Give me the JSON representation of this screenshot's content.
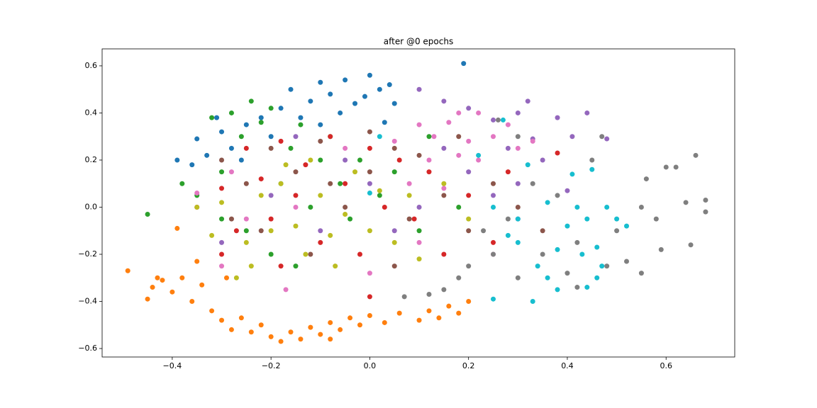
{
  "chart_data": {
    "type": "scatter",
    "title": "after @0 epochs",
    "xlim": [
      -0.542,
      0.739
    ],
    "ylim": [
      -0.636,
      0.672
    ],
    "xticks": [
      {
        "value": -0.4,
        "label": "−0.4"
      },
      {
        "value": -0.2,
        "label": "−0.2"
      },
      {
        "value": 0,
        "label": "0.0"
      },
      0.2,
      0.4,
      0.6
    ],
    "yticks": [
      {
        "value": -0.6,
        "label": "−0.6"
      },
      {
        "value": -0.4,
        "label": "−0.4"
      },
      {
        "value": -0.2,
        "label": "−0.2"
      },
      {
        "value": 0,
        "label": "0.0"
      },
      0.2,
      0.4,
      0.6
    ],
    "series": [
      {
        "color": "#1f77b4",
        "x": [
          -0.39,
          -0.35,
          -0.33,
          -0.3,
          -0.28,
          -0.25,
          -0.22,
          -0.18,
          -0.16,
          -0.12,
          -0.1,
          -0.08,
          -0.05,
          -0.03,
          0.0,
          0.02,
          0.04,
          0.05,
          -0.06,
          -0.14,
          -0.2,
          0.19,
          -0.26,
          -0.1,
          0.03,
          -0.36,
          -0.31,
          -0.01
        ],
        "values": [
          0.2,
          0.29,
          0.22,
          0.32,
          0.25,
          0.35,
          0.38,
          0.42,
          0.5,
          0.45,
          0.53,
          0.48,
          0.54,
          0.44,
          0.56,
          0.5,
          0.52,
          0.44,
          0.4,
          0.38,
          0.3,
          0.61,
          0.2,
          0.35,
          0.36,
          0.18,
          0.38,
          0.47
        ]
      },
      {
        "color": "#ff7f0e",
        "x": [
          -0.49,
          -0.45,
          -0.44,
          -0.42,
          -0.4,
          -0.38,
          -0.36,
          -0.34,
          -0.32,
          -0.3,
          -0.28,
          -0.26,
          -0.24,
          -0.22,
          -0.2,
          -0.18,
          -0.16,
          -0.14,
          -0.12,
          -0.1,
          -0.08,
          -0.06,
          -0.04,
          -0.02,
          0.0,
          0.03,
          0.06,
          0.1,
          0.14,
          0.16,
          0.18,
          0.2,
          -0.39,
          -0.35,
          -0.29,
          -0.43,
          -0.08,
          0.12
        ],
        "values": [
          -0.27,
          -0.39,
          -0.34,
          -0.31,
          -0.36,
          -0.3,
          -0.4,
          -0.33,
          -0.44,
          -0.48,
          -0.52,
          -0.47,
          -0.53,
          -0.5,
          -0.55,
          -0.57,
          -0.53,
          -0.56,
          -0.51,
          -0.54,
          -0.49,
          -0.52,
          -0.47,
          -0.5,
          -0.46,
          -0.49,
          -0.45,
          -0.48,
          -0.47,
          -0.42,
          -0.45,
          -0.4,
          -0.09,
          -0.23,
          -0.3,
          -0.3,
          -0.56,
          -0.44
        ]
      },
      {
        "color": "#2ca02c",
        "x": [
          -0.45,
          -0.38,
          -0.35,
          -0.32,
          -0.3,
          -0.28,
          -0.26,
          -0.24,
          -0.22,
          -0.2,
          -0.18,
          -0.16,
          -0.14,
          -0.12,
          -0.1,
          -0.08,
          -0.06,
          -0.04,
          -0.02,
          0.02,
          0.05,
          0.1,
          -0.15,
          -0.25,
          -0.3,
          -0.2,
          0.12,
          0.18
        ],
        "values": [
          -0.03,
          0.1,
          0.05,
          0.38,
          0.15,
          0.4,
          0.3,
          0.45,
          0.36,
          0.42,
          0.1,
          0.25,
          0.35,
          0.0,
          0.2,
          0.3,
          0.1,
          -0.05,
          0.2,
          0.05,
          0.15,
          -0.1,
          -0.25,
          -0.1,
          -0.05,
          -0.2,
          0.3,
          0.0
        ]
      },
      {
        "color": "#d62728",
        "x": [
          -0.35,
          -0.3,
          -0.27,
          -0.25,
          -0.22,
          -0.2,
          -0.18,
          -0.15,
          -0.13,
          -0.1,
          -0.08,
          -0.05,
          -0.02,
          0.0,
          0.03,
          0.06,
          0.09,
          0.12,
          0.15,
          0.2,
          0.25,
          0.28,
          -0.18,
          0.0,
          0.38,
          -0.3
        ],
        "values": [
          0.0,
          0.08,
          -0.1,
          0.25,
          0.12,
          -0.05,
          0.28,
          0.05,
          0.18,
          -0.15,
          0.3,
          0.1,
          -0.2,
          0.25,
          0.0,
          0.2,
          -0.05,
          0.15,
          -0.2,
          0.05,
          -0.15,
          0.15,
          -0.25,
          -0.38,
          0.23,
          -0.2
        ]
      },
      {
        "color": "#9467bd",
        "x": [
          0.1,
          0.15,
          0.2,
          0.25,
          0.3,
          0.32,
          0.33,
          0.38,
          0.44,
          0.48,
          0.41,
          0.35,
          0.3,
          0.25,
          0.2,
          0.15,
          0.1,
          0.05,
          0.0,
          -0.05,
          -0.1,
          -0.2,
          -0.3,
          0.3,
          0.4,
          0.28,
          -0.15
        ],
        "values": [
          0.5,
          0.45,
          0.42,
          0.37,
          0.4,
          0.45,
          0.29,
          0.38,
          0.4,
          0.29,
          0.3,
          0.2,
          0.1,
          0.05,
          0.15,
          0.25,
          0.0,
          -0.1,
          0.1,
          0.2,
          -0.1,
          0.05,
          -0.15,
          -0.05,
          0.07,
          0.25,
          0.3
        ]
      },
      {
        "color": "#8c564b",
        "x": [
          -0.3,
          -0.25,
          -0.2,
          -0.15,
          -0.1,
          -0.05,
          0.0,
          0.05,
          0.08,
          0.1,
          0.15,
          0.2,
          0.25,
          0.3,
          -0.12,
          -0.22,
          0.05,
          0.18,
          -0.08,
          0.35,
          0.0,
          -0.28
        ],
        "values": [
          0.2,
          0.1,
          0.25,
          0.15,
          0.28,
          0.0,
          0.15,
          0.25,
          -0.05,
          0.22,
          0.05,
          -0.1,
          0.1,
          0.0,
          -0.2,
          -0.1,
          -0.25,
          0.3,
          0.1,
          -0.1,
          0.32,
          -0.05
        ]
      },
      {
        "color": "#e377c2",
        "x": [
          0.1,
          0.13,
          0.16,
          0.18,
          0.2,
          0.22,
          0.25,
          0.28,
          0.3,
          0.18,
          0.12,
          0.08,
          0.15,
          0.05,
          -0.05,
          -0.15,
          -0.25,
          -0.35,
          -0.3,
          -0.17,
          0.0,
          0.1,
          0.25,
          0.22,
          -0.28,
          0.33
        ],
        "values": [
          0.35,
          0.3,
          0.36,
          0.22,
          0.28,
          0.2,
          0.3,
          0.35,
          0.25,
          0.4,
          0.2,
          0.1,
          0.08,
          0.28,
          0.25,
          0.0,
          -0.05,
          0.06,
          -0.25,
          -0.35,
          -0.28,
          -0.15,
          -0.2,
          0.4,
          0.15,
          0.28
        ]
      },
      {
        "color": "#7f7f7f",
        "x": [
          0.15,
          0.18,
          0.2,
          0.23,
          0.25,
          0.28,
          0.3,
          0.33,
          0.35,
          0.38,
          0.4,
          0.42,
          0.45,
          0.47,
          0.5,
          0.52,
          0.55,
          0.56,
          0.58,
          0.6,
          0.62,
          0.64,
          0.65,
          0.66,
          0.68,
          0.68,
          0.59,
          0.55,
          0.3,
          0.12,
          0.07,
          0.42,
          0.48,
          0.26
        ],
        "values": [
          -0.35,
          -0.3,
          -0.25,
          -0.1,
          -0.2,
          -0.05,
          -0.3,
          0.1,
          -0.2,
          0.05,
          -0.28,
          -0.15,
          0.2,
          0.3,
          -0.1,
          -0.23,
          0.0,
          0.12,
          -0.05,
          0.17,
          0.17,
          0.02,
          -0.16,
          0.22,
          0.03,
          -0.02,
          -0.18,
          -0.28,
          0.3,
          -0.37,
          -0.38,
          -0.34,
          -0.25,
          0.37
        ]
      },
      {
        "color": "#bcbd22",
        "x": [
          -0.35,
          -0.32,
          -0.3,
          -0.27,
          -0.25,
          -0.22,
          -0.2,
          -0.18,
          -0.15,
          -0.13,
          -0.1,
          -0.08,
          -0.05,
          -0.03,
          0.0,
          0.02,
          0.05,
          0.08,
          0.1,
          -0.12,
          -0.24,
          0.15,
          0.2,
          -0.07,
          -0.17
        ],
        "values": [
          0.0,
          -0.12,
          0.02,
          -0.3,
          -0.15,
          0.05,
          -0.1,
          0.1,
          -0.08,
          -0.2,
          0.05,
          -0.12,
          -0.03,
          0.15,
          -0.1,
          0.07,
          -0.15,
          0.05,
          -0.22,
          0.2,
          -0.25,
          0.1,
          -0.05,
          -0.25,
          0.18
        ]
      },
      {
        "color": "#17becf",
        "x": [
          0.22,
          0.25,
          0.28,
          0.3,
          0.32,
          0.34,
          0.36,
          0.38,
          0.4,
          0.41,
          0.43,
          0.44,
          0.45,
          0.46,
          0.47,
          0.48,
          0.5,
          0.52,
          0.38,
          0.33,
          0.25,
          0.44,
          0.3,
          0.36,
          0.42,
          0.27,
          0.02,
          0.0,
          0.46
        ],
        "values": [
          0.22,
          0.0,
          -0.12,
          -0.05,
          0.18,
          -0.25,
          0.02,
          -0.18,
          -0.08,
          0.14,
          -0.2,
          -0.05,
          0.16,
          -0.17,
          -0.25,
          0.0,
          -0.05,
          -0.08,
          -0.35,
          -0.4,
          -0.39,
          -0.34,
          -0.15,
          -0.3,
          0.0,
          0.37,
          0.3,
          0.06,
          -0.3
        ]
      }
    ]
  }
}
